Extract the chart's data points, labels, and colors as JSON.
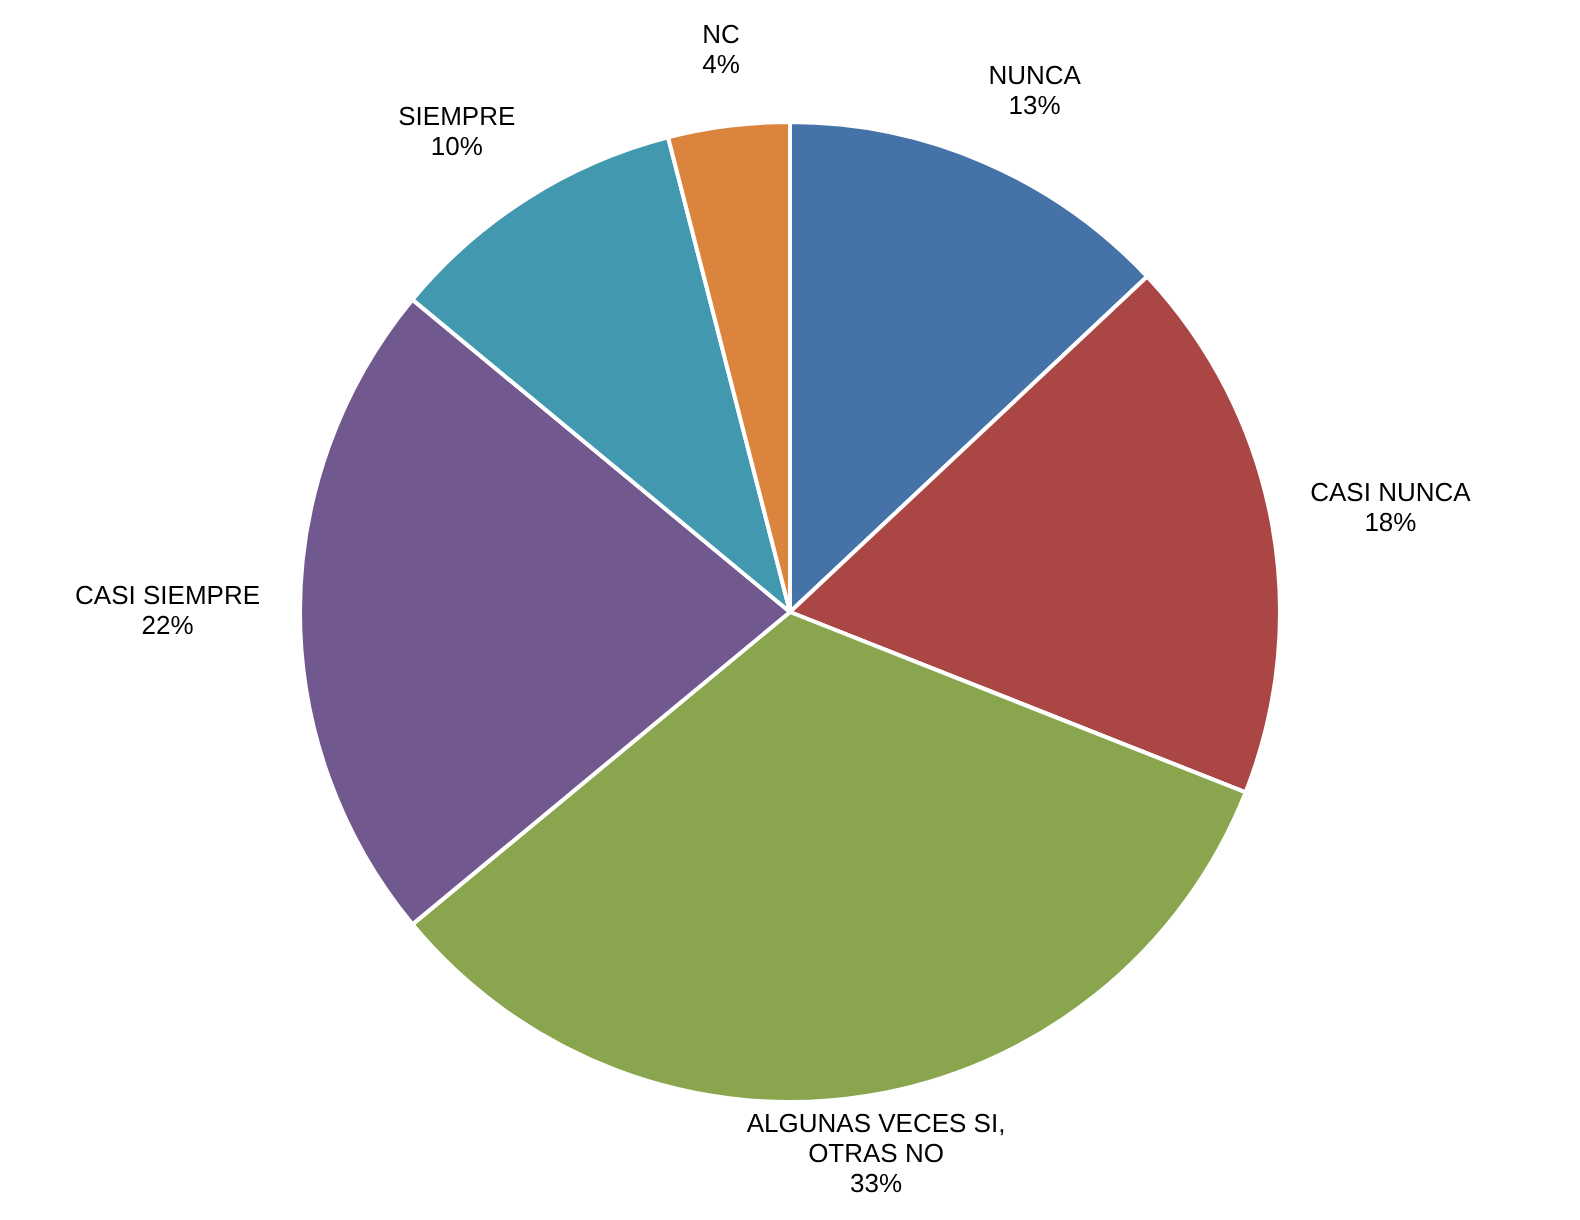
{
  "chart_data": {
    "type": "pie",
    "categories": [
      "NUNCA",
      "CASI NUNCA",
      "ALGUNAS VECES SI, OTRAS NO",
      "CASI SIEMPRE",
      "SIEMPRE",
      "NC"
    ],
    "values": [
      13,
      18,
      33,
      22,
      10,
      4
    ],
    "colors": [
      "#4572a7",
      "#aa4643",
      "#89a54e",
      "#71588f",
      "#4198af",
      "#db843d"
    ],
    "value_labels": [
      "13%",
      "18%",
      "33%",
      "22%",
      "10%",
      "4%"
    ],
    "legend": false
  }
}
